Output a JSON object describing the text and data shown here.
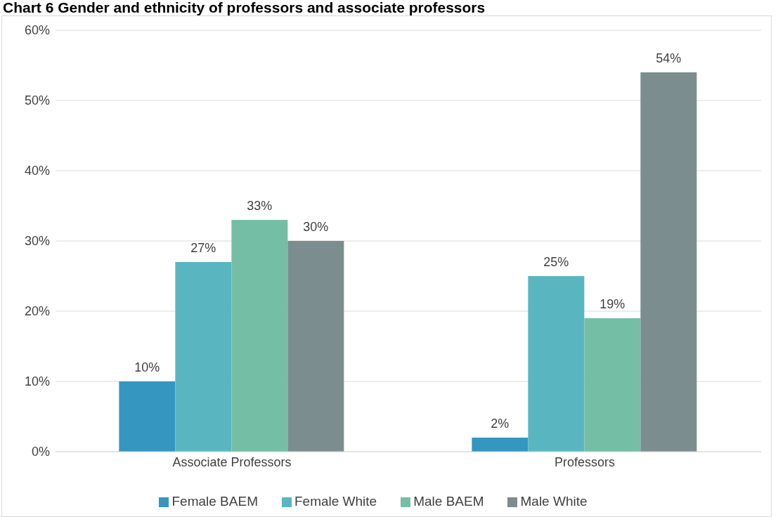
{
  "chart_data": {
    "type": "bar",
    "title": "Chart 6 Gender and ethnicity of professors and associate professors",
    "categories": [
      "Associate Professors",
      "Professors"
    ],
    "series": [
      {
        "name": "Female BAEM",
        "color": "#3596bf",
        "values": [
          10,
          2
        ],
        "value_labels": [
          "10%",
          "2%"
        ]
      },
      {
        "name": "Female White",
        "color": "#59b6c0",
        "values": [
          27,
          25
        ],
        "value_labels": [
          "27%",
          "25%"
        ]
      },
      {
        "name": "Male BAEM",
        "color": "#75bea6",
        "values": [
          33,
          19
        ],
        "value_labels": [
          "33%",
          "19%"
        ]
      },
      {
        "name": "Male White",
        "color": "#7b8d8e",
        "values": [
          30,
          54
        ],
        "value_labels": [
          "30%",
          "54%"
        ]
      }
    ],
    "ylim": [
      0,
      60
    ],
    "yticks": [
      {
        "value": 0,
        "label": "0%"
      },
      {
        "value": 10,
        "label": "10%"
      },
      {
        "value": 20,
        "label": "20%"
      },
      {
        "value": 30,
        "label": "30%"
      },
      {
        "value": 40,
        "label": "40%"
      },
      {
        "value": 50,
        "label": "50%"
      },
      {
        "value": 60,
        "label": "60%"
      }
    ],
    "grid": "y",
    "legend": "bottom"
  }
}
